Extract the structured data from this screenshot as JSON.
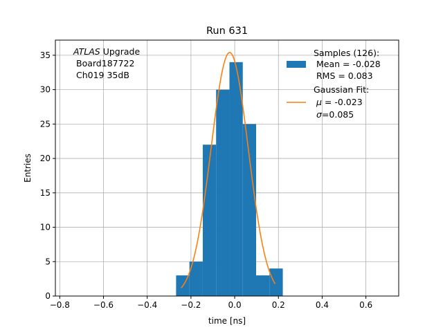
{
  "chart_data": {
    "type": "bar",
    "title": "Run 631",
    "xlabel": "time [ns]",
    "ylabel": "Entries",
    "xlim": [
      -0.82,
      0.75
    ],
    "ylim": [
      0,
      37.2
    ],
    "xticks": [
      -0.8,
      -0.6,
      -0.4,
      -0.2,
      0.0,
      0.2,
      0.4,
      0.6
    ],
    "xtick_labels": [
      "−0.8",
      "−0.6",
      "−0.4",
      "−0.2",
      "0.0",
      "0.2",
      "0.4",
      "0.6"
    ],
    "yticks": [
      0,
      5,
      10,
      15,
      20,
      25,
      30,
      35
    ],
    "grid": true,
    "annotation": {
      "lines": [
        "ATLAS Upgrade",
        "Board187722",
        "Ch019 35dB"
      ],
      "italic_word": "ATLAS",
      "rest_of_first_line": " Upgrade"
    },
    "histogram": {
      "color": "#1f77b4",
      "bin_edges": [
        -0.268,
        -0.207,
        -0.146,
        -0.085,
        -0.024,
        0.037,
        0.098,
        0.159,
        0.22
      ],
      "counts": [
        3,
        5,
        22,
        30,
        34,
        25,
        3,
        4
      ]
    },
    "fit": {
      "color": "#ff7f0e",
      "mu": -0.023,
      "sigma": 0.085,
      "amplitude": 35.4,
      "x_range": [
        -0.245,
        0.185
      ]
    },
    "legend": {
      "placement": "top-right",
      "samples_label": [
        "Samples (126):",
        " Mean = -0.028",
        " RMS = 0.083"
      ],
      "fit_label": [
        "Gaussian Fit:"
      ],
      "fit_mu_symbol": "μ",
      "fit_mu_text": " = -0.023",
      "fit_sigma_symbol": "σ",
      "fit_sigma_text": "=0.085"
    }
  }
}
